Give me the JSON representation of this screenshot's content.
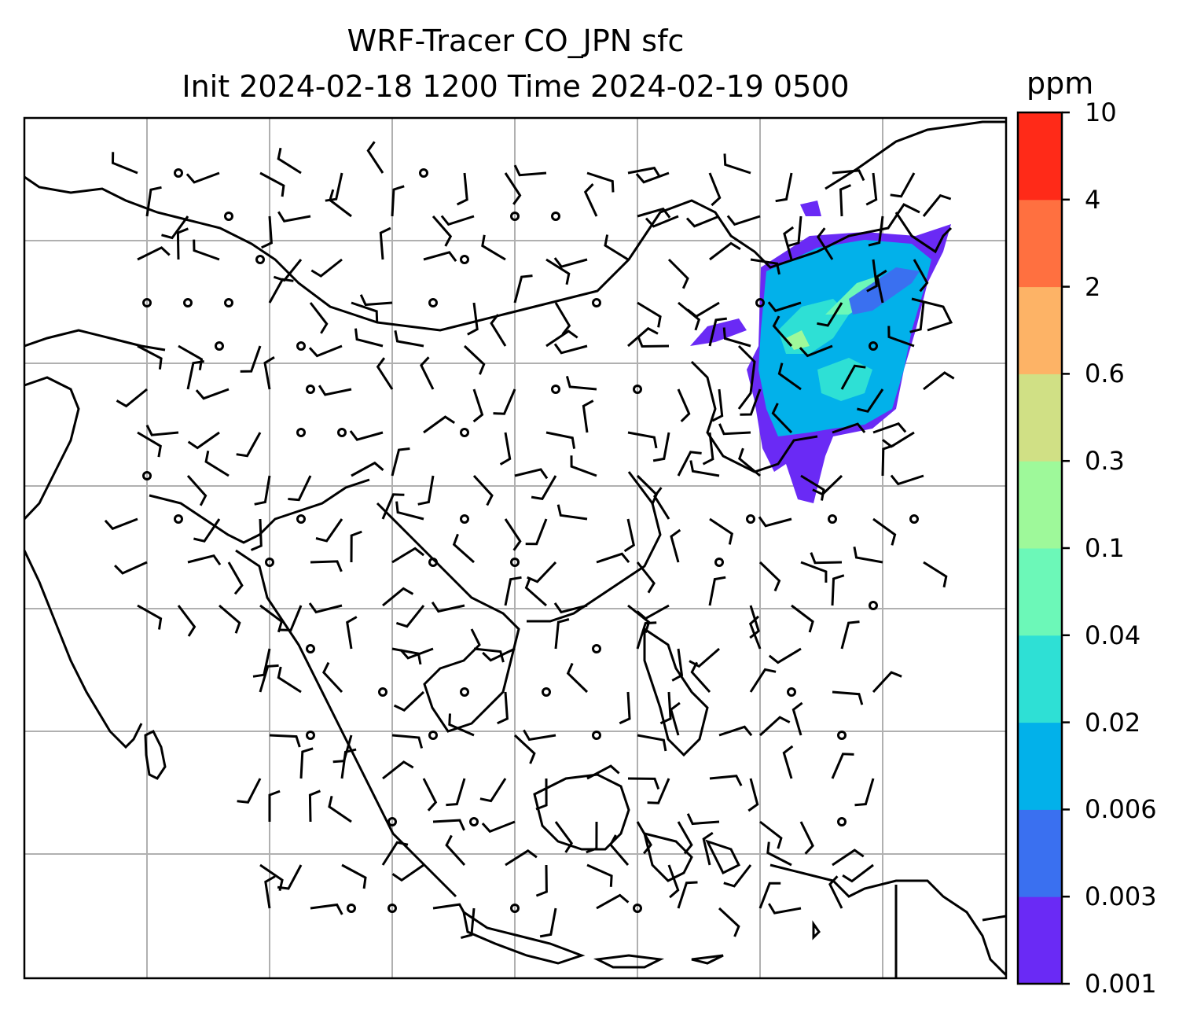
{
  "title": {
    "line1": "WRF-Tracer CO_JPN sfc",
    "line2": "Init 2024-02-18 1200 Time 2024-02-19 0500"
  },
  "colorbar": {
    "units": "ppm",
    "levels": [
      "0.001",
      "0.003",
      "0.006",
      "0.02",
      "0.04",
      "0.1",
      "0.3",
      "0.6",
      "2",
      "4",
      "10"
    ],
    "colors": [
      "#6a2af5",
      "#3a70f0",
      "#02b1ea",
      "#2ee0d5",
      "#6cf8b8",
      "#9ef99a",
      "#d0e085",
      "#fdb366",
      "#ff7040",
      "#ff2a18"
    ]
  },
  "map": {
    "gridlines": true,
    "features": [
      "coastlines",
      "wind-barbs",
      "tracer-concentration-fill"
    ]
  }
}
